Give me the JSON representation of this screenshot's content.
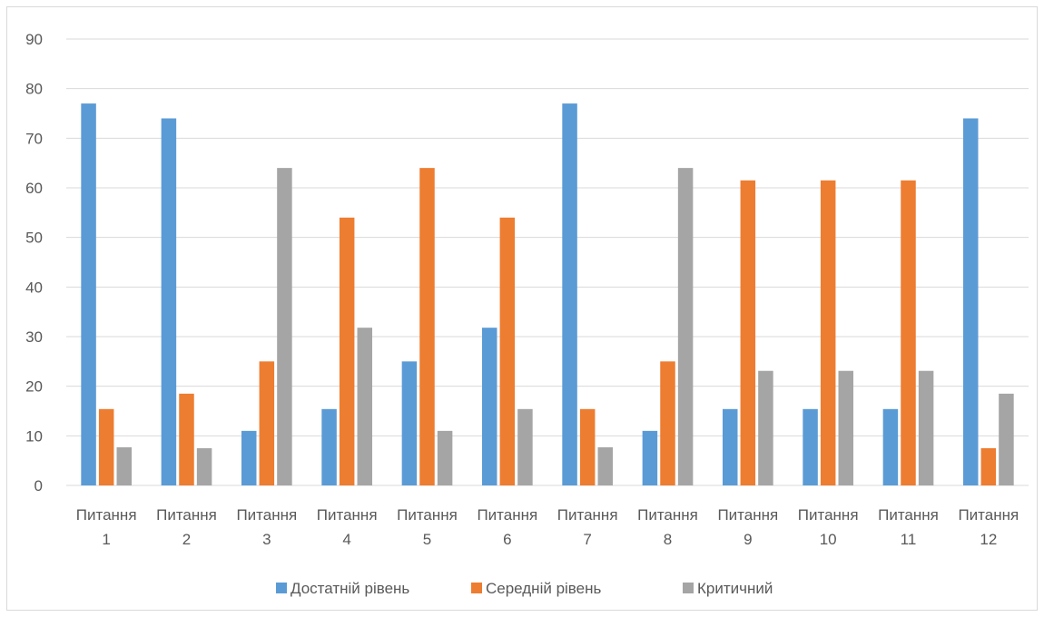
{
  "chart_data": {
    "type": "bar",
    "title": "",
    "xlabel": "",
    "ylabel": "",
    "ylim": [
      0,
      90
    ],
    "yticks": [
      0,
      10,
      20,
      30,
      40,
      50,
      60,
      70,
      80,
      90
    ],
    "grid": true,
    "legend_position": "bottom",
    "categories": [
      [
        "Питання",
        "1"
      ],
      [
        "Питання",
        "2"
      ],
      [
        "Питання",
        "3"
      ],
      [
        "Питання",
        "4"
      ],
      [
        "Питання",
        "5"
      ],
      [
        "Питання",
        "6"
      ],
      [
        "Питання",
        "7"
      ],
      [
        "Питання",
        "8"
      ],
      [
        "Питання",
        "9"
      ],
      [
        "Питання",
        "10"
      ],
      [
        "Питання",
        "11"
      ],
      [
        "Питання",
        "12"
      ]
    ],
    "series": [
      {
        "name": "Достатній рівень",
        "color": "#5b9bd5",
        "values": [
          77,
          74,
          11,
          15.4,
          25,
          31.8,
          77,
          11,
          15.4,
          15.4,
          15.4,
          74
        ]
      },
      {
        "name": "Середній рівень",
        "color": "#ed7d31",
        "values": [
          15.4,
          18.5,
          25,
          54,
          64,
          54,
          15.4,
          25,
          61.5,
          61.5,
          61.5,
          7.5
        ]
      },
      {
        "name": "Критичний",
        "color": "#a5a5a5",
        "values": [
          7.7,
          7.5,
          64,
          31.8,
          11,
          15.4,
          7.7,
          64,
          23.1,
          23.1,
          23.1,
          18.5
        ]
      }
    ]
  }
}
